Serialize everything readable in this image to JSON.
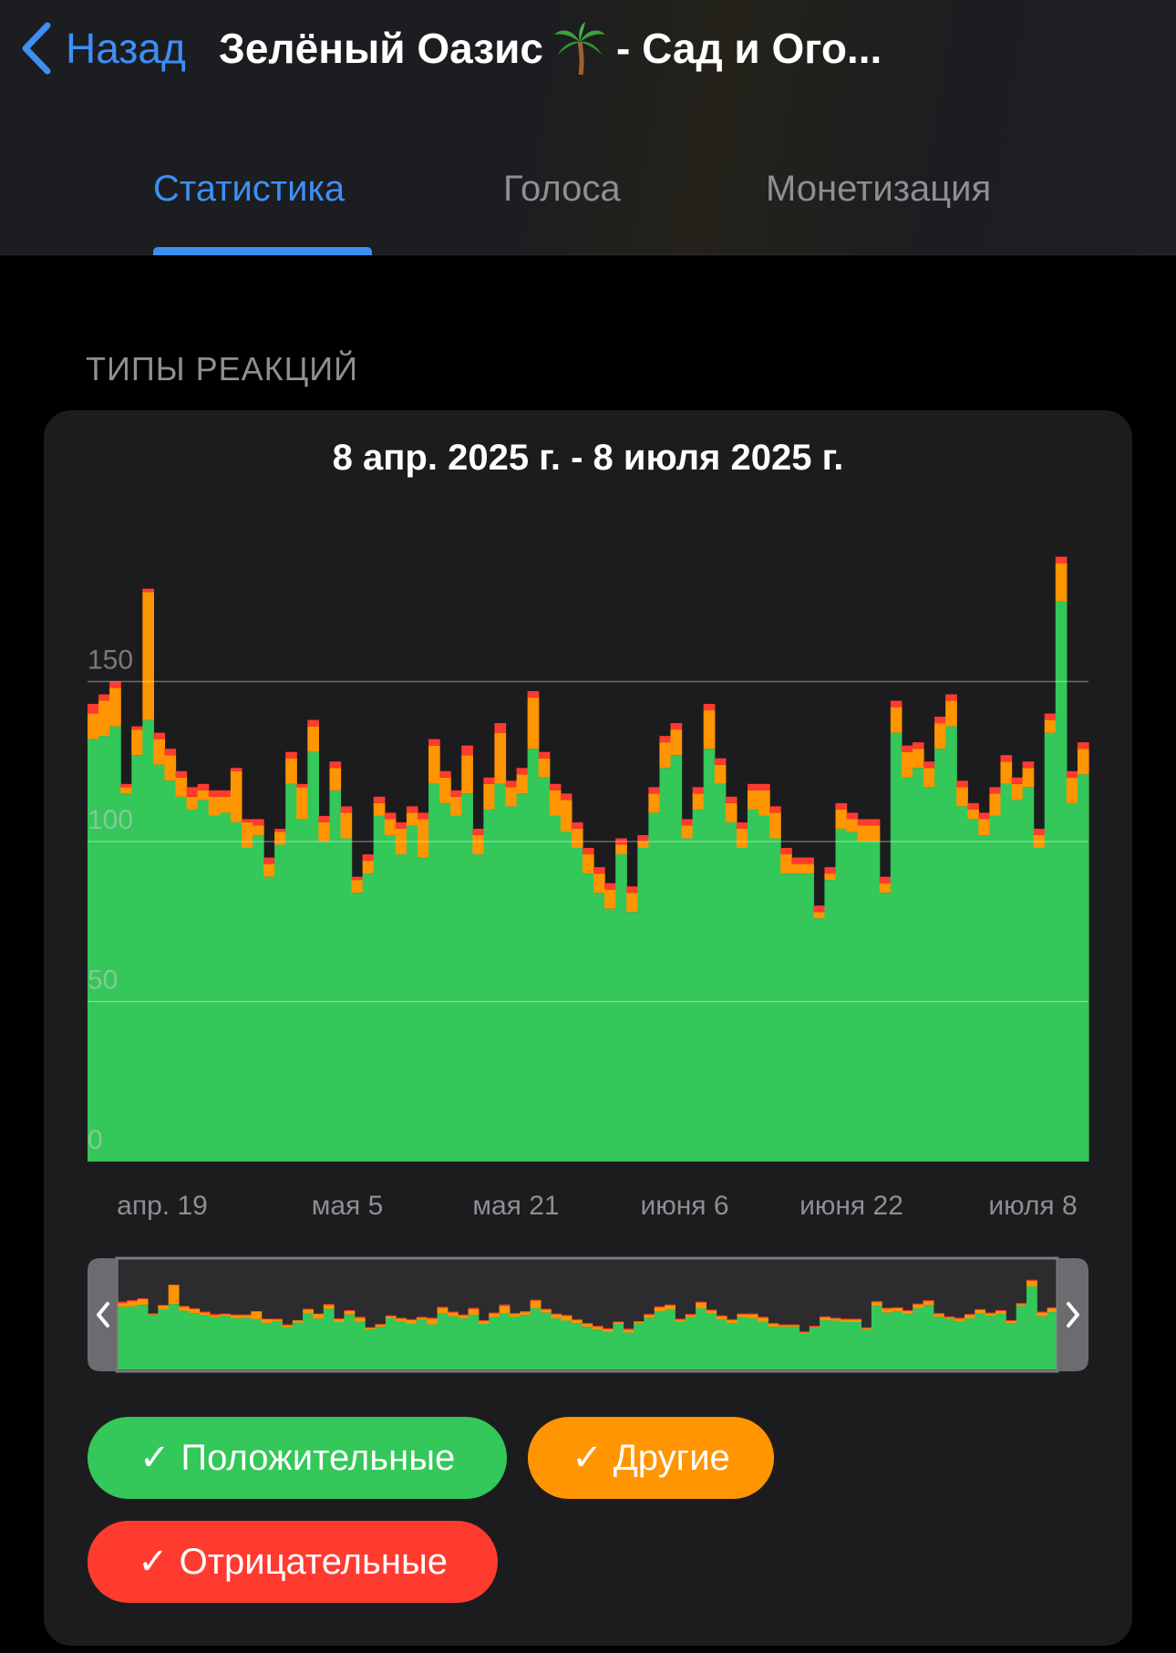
{
  "header": {
    "back_label": "Назад",
    "title_part1": "Зелёный Оазис",
    "title_part2": "- Сад и Ого...",
    "title_icon": "palm-tree-icon"
  },
  "tabs": [
    {
      "label": "Статистика",
      "active": true
    },
    {
      "label": "Голоса",
      "active": false
    },
    {
      "label": "Монетизация",
      "active": false
    }
  ],
  "section_title": "ТИПЫ РЕАКЦИЙ",
  "colors": {
    "positive": "#34c759",
    "other": "#ff9500",
    "negative": "#ff3b30",
    "accent": "#3d8ff5"
  },
  "legend": [
    {
      "label": "Положительные",
      "color": "#34c759"
    },
    {
      "label": "Другие",
      "color": "#ff9500"
    },
    {
      "label": "Отрицательные",
      "color": "#ff3b30"
    }
  ],
  "chart_data": {
    "type": "bar",
    "stacked": true,
    "title": "8 апр. 2025 г. - 8 июля 2025 г.",
    "ylim": [
      0,
      185
    ],
    "yticks": [
      0,
      50,
      100,
      150
    ],
    "grid": true,
    "xtick_labels": [
      "апр. 19",
      "мая 5",
      "мая 21",
      "июня 6",
      "июня 22",
      "июля 8"
    ],
    "series": [
      {
        "name": "Положительные",
        "color": "#34c759",
        "values": [
          132,
          133,
          136,
          115,
          127,
          138,
          124,
          119,
          114,
          110,
          113,
          108,
          109,
          106,
          98,
          102,
          89,
          99,
          118,
          107,
          128,
          100,
          116,
          101,
          84,
          90,
          108,
          102,
          96,
          105,
          95,
          118,
          112,
          108,
          115,
          96,
          110,
          118,
          111,
          115,
          129,
          120,
          108,
          103,
          98,
          90,
          84,
          79,
          96,
          78,
          98,
          109,
          123,
          127,
          101,
          110,
          129,
          118,
          106,
          98,
          110,
          108,
          101,
          90,
          90,
          90,
          76,
          88,
          104,
          103,
          100,
          100,
          84,
          134,
          120,
          123,
          117,
          129,
          136,
          111,
          107,
          102,
          108,
          118,
          113,
          117,
          98,
          134,
          175,
          112,
          121
        ]
      },
      {
        "name": "Другие",
        "color": "#ff9500",
        "values": [
          8,
          11,
          12,
          2,
          8,
          40,
          8,
          8,
          6,
          4,
          3,
          6,
          5,
          16,
          8,
          3,
          4,
          4,
          8,
          10,
          8,
          6,
          7,
          8,
          4,
          4,
          4,
          5,
          8,
          4,
          12,
          12,
          8,
          6,
          12,
          6,
          8,
          16,
          6,
          6,
          16,
          6,
          8,
          10,
          6,
          6,
          6,
          6,
          3,
          6,
          2,
          6,
          8,
          8,
          4,
          5,
          12,
          6,
          6,
          6,
          6,
          8,
          8,
          6,
          3,
          3,
          2,
          2,
          6,
          4,
          5,
          5,
          3,
          8,
          8,
          6,
          6,
          8,
          8,
          6,
          3,
          5,
          7,
          7,
          5,
          6,
          4,
          4,
          12,
          8,
          8
        ]
      },
      {
        "name": "Отрицательные",
        "color": "#ff3b30",
        "values": [
          3,
          2,
          2,
          1,
          1,
          1,
          2,
          2,
          2,
          3,
          2,
          2,
          2,
          1,
          1,
          2,
          2,
          1,
          2,
          1,
          2,
          2,
          2,
          2,
          1,
          2,
          2,
          2,
          2,
          2,
          2,
          2,
          2,
          2,
          3,
          2,
          2,
          3,
          2,
          2,
          2,
          2,
          2,
          2,
          2,
          2,
          2,
          2,
          2,
          2,
          2,
          2,
          2,
          2,
          2,
          2,
          2,
          2,
          2,
          2,
          2,
          2,
          2,
          2,
          2,
          2,
          2,
          2,
          2,
          2,
          2,
          2,
          2,
          2,
          2,
          2,
          2,
          2,
          2,
          2,
          2,
          2,
          2,
          2,
          2,
          2,
          2,
          2,
          2,
          2,
          2
        ]
      }
    ]
  }
}
